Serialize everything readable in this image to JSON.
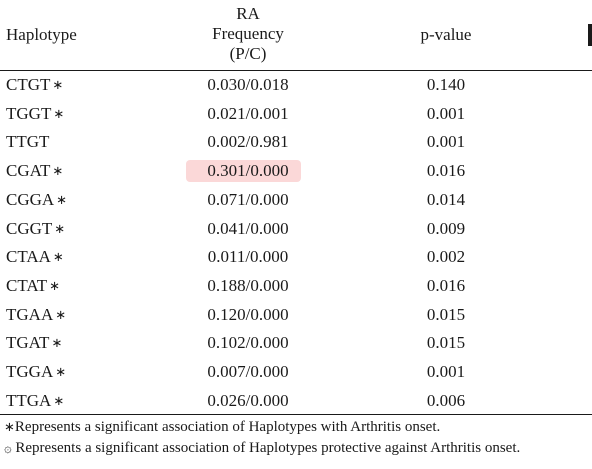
{
  "header": {
    "haplotype": "Haplotype",
    "freq_line1": "RA",
    "freq_line2": "Frequency",
    "freq_line3": "(P/C)",
    "pvalue": "p-value"
  },
  "significance_marker": "∗",
  "protective_marker": "۞",
  "rows": [
    {
      "haplotype": "CTGT",
      "marked": true,
      "frequency": "0.030/0.018",
      "p_value": "0.140",
      "highlighted": false
    },
    {
      "haplotype": "TGGT",
      "marked": true,
      "frequency": "0.021/0.001",
      "p_value": "0.001",
      "highlighted": false
    },
    {
      "haplotype": "TTGT",
      "marked": false,
      "frequency": "0.002/0.981",
      "p_value": "0.001",
      "highlighted": false
    },
    {
      "haplotype": "CGAT",
      "marked": true,
      "frequency": "0.301/0.000",
      "p_value": "0.016",
      "highlighted": true
    },
    {
      "haplotype": "CGGA",
      "marked": true,
      "frequency": "0.071/0.000",
      "p_value": "0.014",
      "highlighted": false
    },
    {
      "haplotype": "CGGT",
      "marked": true,
      "frequency": "0.041/0.000",
      "p_value": "0.009",
      "highlighted": false
    },
    {
      "haplotype": "CTAA",
      "marked": true,
      "frequency": "0.011/0.000",
      "p_value": "0.002",
      "highlighted": false
    },
    {
      "haplotype": "CTAT",
      "marked": true,
      "frequency": "0.188/0.000",
      "p_value": "0.016",
      "highlighted": false
    },
    {
      "haplotype": "TGAA",
      "marked": true,
      "frequency": "0.120/0.000",
      "p_value": "0.015",
      "highlighted": false
    },
    {
      "haplotype": "TGAT",
      "marked": true,
      "frequency": "0.102/0.000",
      "p_value": "0.015",
      "highlighted": false
    },
    {
      "haplotype": "TGGA",
      "marked": true,
      "frequency": "0.007/0.000",
      "p_value": "0.001",
      "highlighted": false
    },
    {
      "haplotype": "TTGA",
      "marked": true,
      "frequency": "0.026/0.000",
      "p_value": "0.006",
      "highlighted": false
    }
  ],
  "footnotes": {
    "significant": "Represents a significant association of Haplotypes with Arthritis onset.",
    "protective": " Represents a significant association of Haplotypes protective against Arthritis onset."
  },
  "colors": {
    "highlight": "#fbd8d8",
    "text": "#1a1a1a"
  }
}
